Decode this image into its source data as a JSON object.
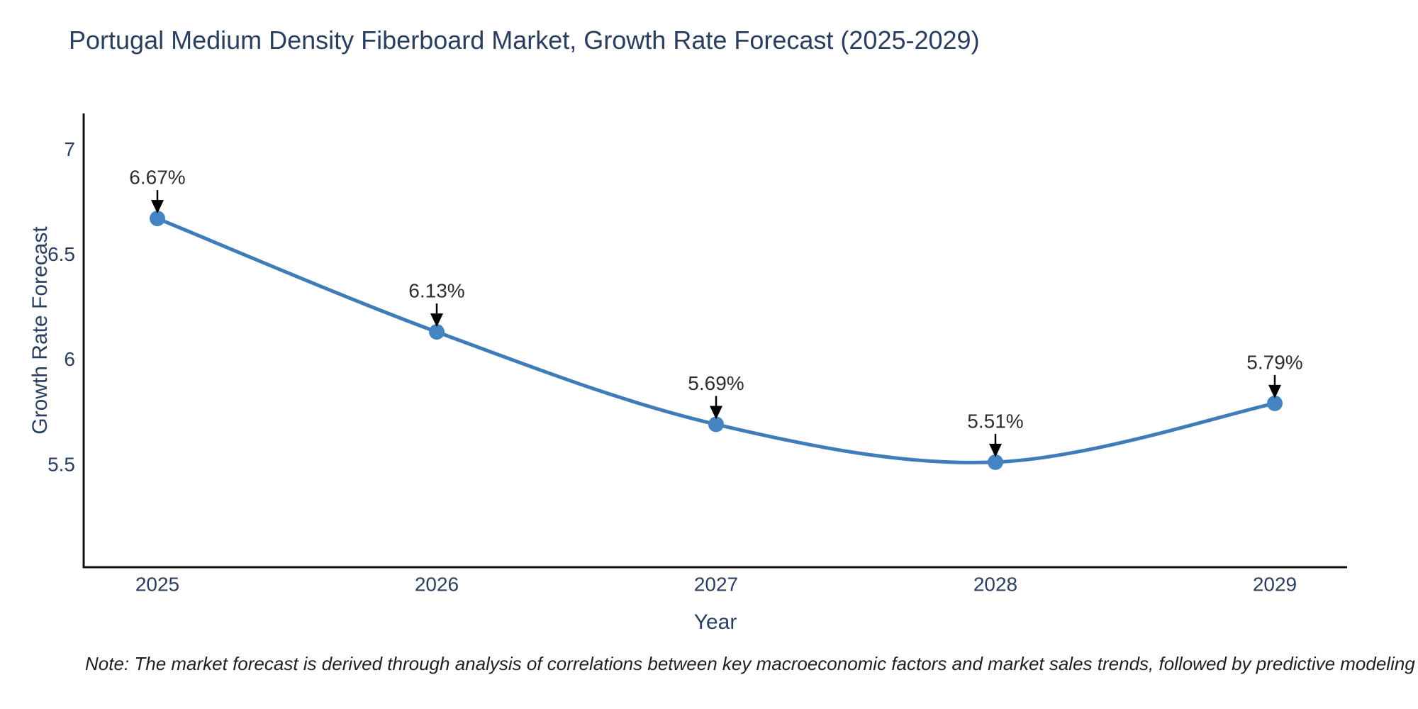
{
  "title": "Portugal Medium Density Fiberboard Market, Growth Rate Forecast (2025-2029)",
  "footnote": "Note: The market forecast is derived through analysis of correlations between key macroeconomic factors and market sales trends, followed by predictive modeling to project future sales",
  "chart_data": {
    "type": "line",
    "title": "Portugal Medium Density Fiberboard Market, Growth Rate Forecast (2025-2029)",
    "xlabel": "Year",
    "ylabel": "Growth Rate Forecast",
    "x": [
      2025,
      2026,
      2027,
      2028,
      2029
    ],
    "series": [
      {
        "name": "Growth Rate Forecast",
        "values": [
          6.67,
          6.13,
          5.69,
          5.51,
          5.79
        ]
      }
    ],
    "point_labels": [
      "6.67%",
      "6.13%",
      "5.69%",
      "5.51%",
      "5.79%"
    ],
    "ytick_values": [
      5.5,
      6,
      6.5,
      7
    ],
    "ytick_labels": [
      "5.5",
      "6",
      "6.5",
      "7"
    ],
    "xtick_labels": [
      "2025",
      "2026",
      "2027",
      "2028",
      "2029"
    ],
    "ylim": [
      5.01,
      7.17
    ],
    "line_shape": "spline",
    "grid": false,
    "legend_position": "none",
    "annotations_arrow": "down-arrow-to-point",
    "colors": {
      "line": "#3f7cb9",
      "marker": "#4485c1",
      "arrow": "#000000",
      "axis_line": "#111111",
      "title_text": "#2a3f5f",
      "tick_text": "#2a3f5f",
      "annotation_text": "#2e2e2e"
    }
  }
}
